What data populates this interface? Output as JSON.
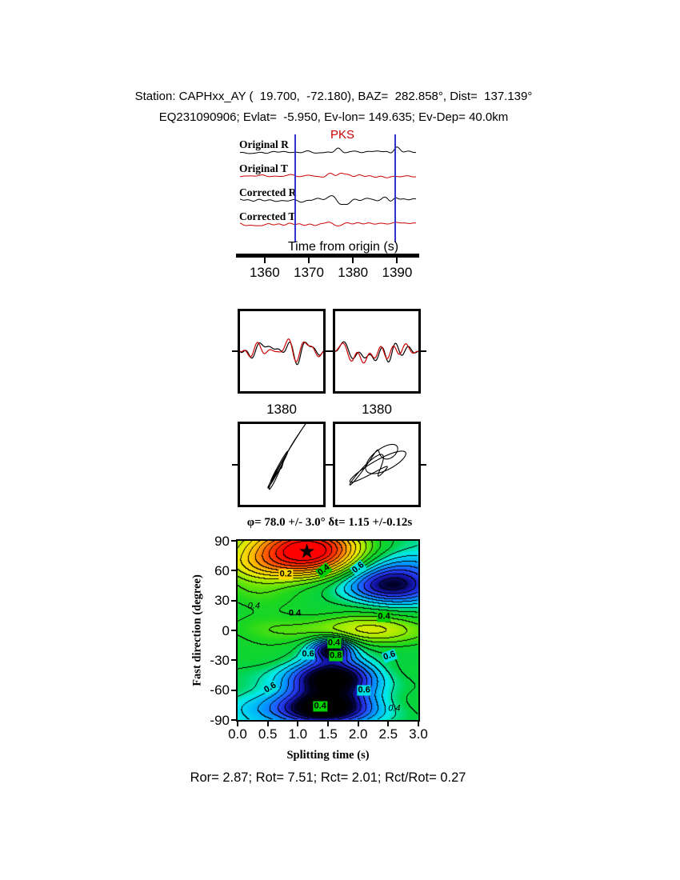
{
  "header": {
    "line1": "Station: CAPHxx_AY (  19.700,  -72.180), BAZ=  282.858°, Dist=  137.139°",
    "line2": "EQ231090906; Evlat=  -5.950, Ev-lon= 149.635; Ev-Dep= 40.0km"
  },
  "footer": "Ror= 2.87; Rot= 7.51; Rct= 2.01; Rct/Rot= 0.27",
  "chart_data": [
    {
      "type": "line",
      "id": "waveform-panel",
      "phase_label": "PKS",
      "phase_label_color": "#cc0000",
      "trace_labels": [
        "Original R",
        "Original T",
        "Corrected R",
        "Corrected T"
      ],
      "trace_colors": [
        "#000000",
        "#cc0000",
        "#000000",
        "#cc0000"
      ],
      "xlabel": "Time from origin (s)",
      "xticks": [
        "1360",
        "1370",
        "1380",
        "1390"
      ],
      "xlim": [
        1353.5,
        1395.0
      ],
      "window_s": [
        1367.0,
        1389.5
      ],
      "window_color": "#3333cc"
    },
    {
      "type": "line",
      "id": "fast-slow-comparison",
      "panels": [
        {
          "xtick": "1380"
        },
        {
          "xtick": "1380"
        }
      ],
      "trace_colors": [
        "#000000",
        "#cc0000"
      ]
    },
    {
      "type": "line",
      "id": "particle-motion",
      "panels": 2,
      "trace_color": "#000000"
    },
    {
      "type": "heatmap",
      "id": "splitting-misfit-map",
      "title": "φ= 78.0 +/- 3.0° δt= 1.15 +/-0.12s",
      "xlabel": "Splitting time (s)",
      "ylabel": "Fast direction (degree)",
      "xticks": [
        "0.0",
        "0.5",
        "1.0",
        "1.5",
        "2.0",
        "2.5",
        "3.0"
      ],
      "yticks": [
        "90",
        "60",
        "30",
        "0",
        "-30",
        "-60",
        "-90"
      ],
      "xlim": [
        0,
        3
      ],
      "ylim": [
        -90,
        90
      ],
      "contour_interval": 0.05,
      "labeled_levels": [
        "0.2",
        "0.4",
        "0.6",
        "0.8"
      ],
      "best_solution": {
        "splitting_time_s": 1.15,
        "fast_direction_deg": 78.0,
        "marker": "★"
      },
      "contour_labels": [
        {
          "text": "0.2",
          "x": 0.8,
          "y": 56,
          "bg": "#ffd800",
          "rot": 0,
          "italic": false
        },
        {
          "text": "0.4",
          "x": 1.43,
          "y": 60,
          "bg": "#00d000",
          "rot": -38,
          "italic": false
        },
        {
          "text": "0.6",
          "x": 2.0,
          "y": 63,
          "bg": "#00e0e0",
          "rot": -38,
          "italic": false
        },
        {
          "text": "0.4",
          "x": 0.27,
          "y": 24,
          "bg": null,
          "rot": 0,
          "italic": true
        },
        {
          "text": "0 4",
          "x": 0.95,
          "y": 17,
          "bg": null,
          "rot": 0,
          "italic": false
        },
        {
          "text": "0.4",
          "x": 2.43,
          "y": 14,
          "bg": "#00d000",
          "rot": 0,
          "italic": false
        },
        {
          "text": "0.4",
          "x": 1.6,
          "y": -13,
          "bg": "#00d000",
          "rot": 0,
          "italic": false
        },
        {
          "text": "0.6",
          "x": 1.17,
          "y": -24,
          "bg": "#00e0e0",
          "rot": 0,
          "italic": false
        },
        {
          "text": "0.8",
          "x": 1.63,
          "y": -26,
          "bg": "#00d000",
          "rot": 0,
          "italic": false
        },
        {
          "text": "0.6",
          "x": 2.52,
          "y": -26,
          "bg": "#00e0e0",
          "rot": -20,
          "italic": false
        },
        {
          "text": "0.6",
          "x": 0.55,
          "y": -58,
          "bg": "#00e0e0",
          "rot": -30,
          "italic": false
        },
        {
          "text": "0.4",
          "x": 1.37,
          "y": -76,
          "bg": "#00d000",
          "rot": 0,
          "italic": false
        },
        {
          "text": "0.6",
          "x": 2.1,
          "y": -60,
          "bg": "#00e0e0",
          "rot": 0,
          "italic": false
        },
        {
          "text": "0.4",
          "x": 2.6,
          "y": -79,
          "bg": null,
          "rot": 0,
          "italic": true
        }
      ]
    }
  ]
}
